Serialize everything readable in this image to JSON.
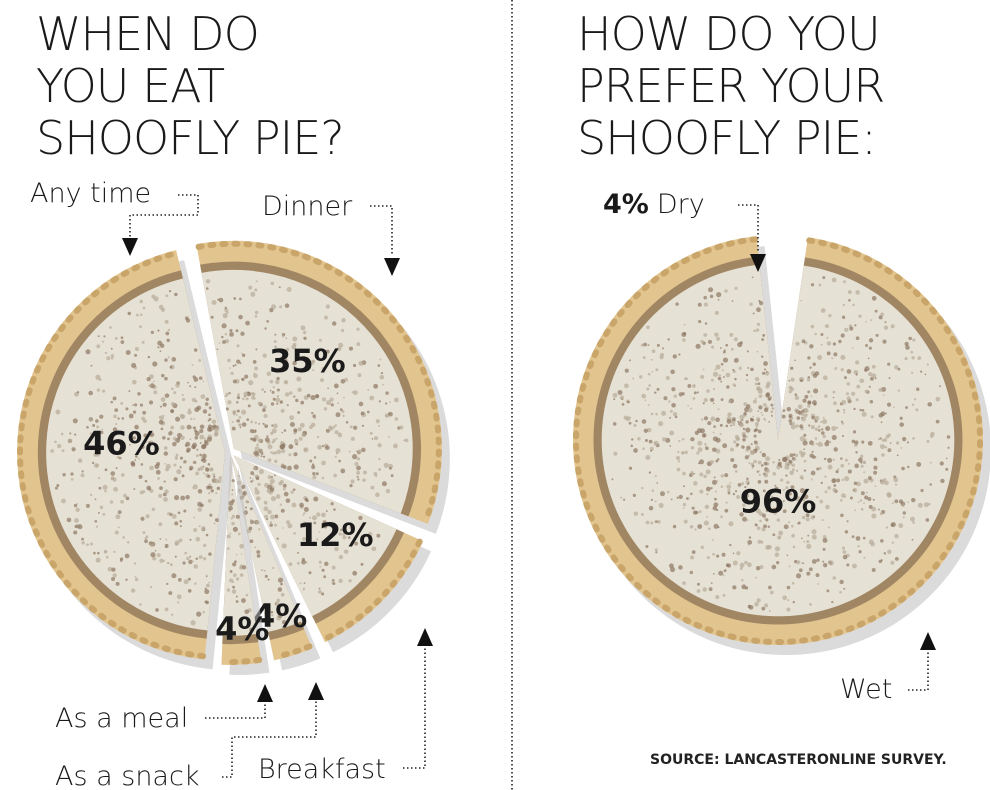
{
  "chart_data": [
    {
      "type": "pie",
      "title": [
        "WHEN DO",
        "YOU EAT",
        "SHOOFLY PIE?"
      ],
      "slices": [
        {
          "label": "Dinner",
          "value": 35,
          "value_label": "35%"
        },
        {
          "label": "Breakfast",
          "value": 12,
          "value_label": "12%"
        },
        {
          "label": "As a snack",
          "value": 4,
          "value_label": "4%"
        },
        {
          "label": "As a meal",
          "value": 4,
          "value_label": "4%"
        },
        {
          "label": "Any time",
          "value": 46,
          "value_label": "46%"
        }
      ]
    },
    {
      "type": "pie",
      "title": [
        "HOW DO YOU",
        "PREFER YOUR",
        "SHOOFLY PIE:"
      ],
      "slices": [
        {
          "label": "Dry",
          "value": 4,
          "value_label": "4%"
        },
        {
          "label": "Wet",
          "value": 96,
          "value_label": "96%"
        }
      ]
    }
  ],
  "source": "SOURCE: LANCASTERONLINE SURVEY.",
  "colors": {
    "crust": "#e2c48e",
    "filling": "#e6e1d5",
    "crumb_dark": "#6b5440",
    "text": "#1a1a1a"
  }
}
